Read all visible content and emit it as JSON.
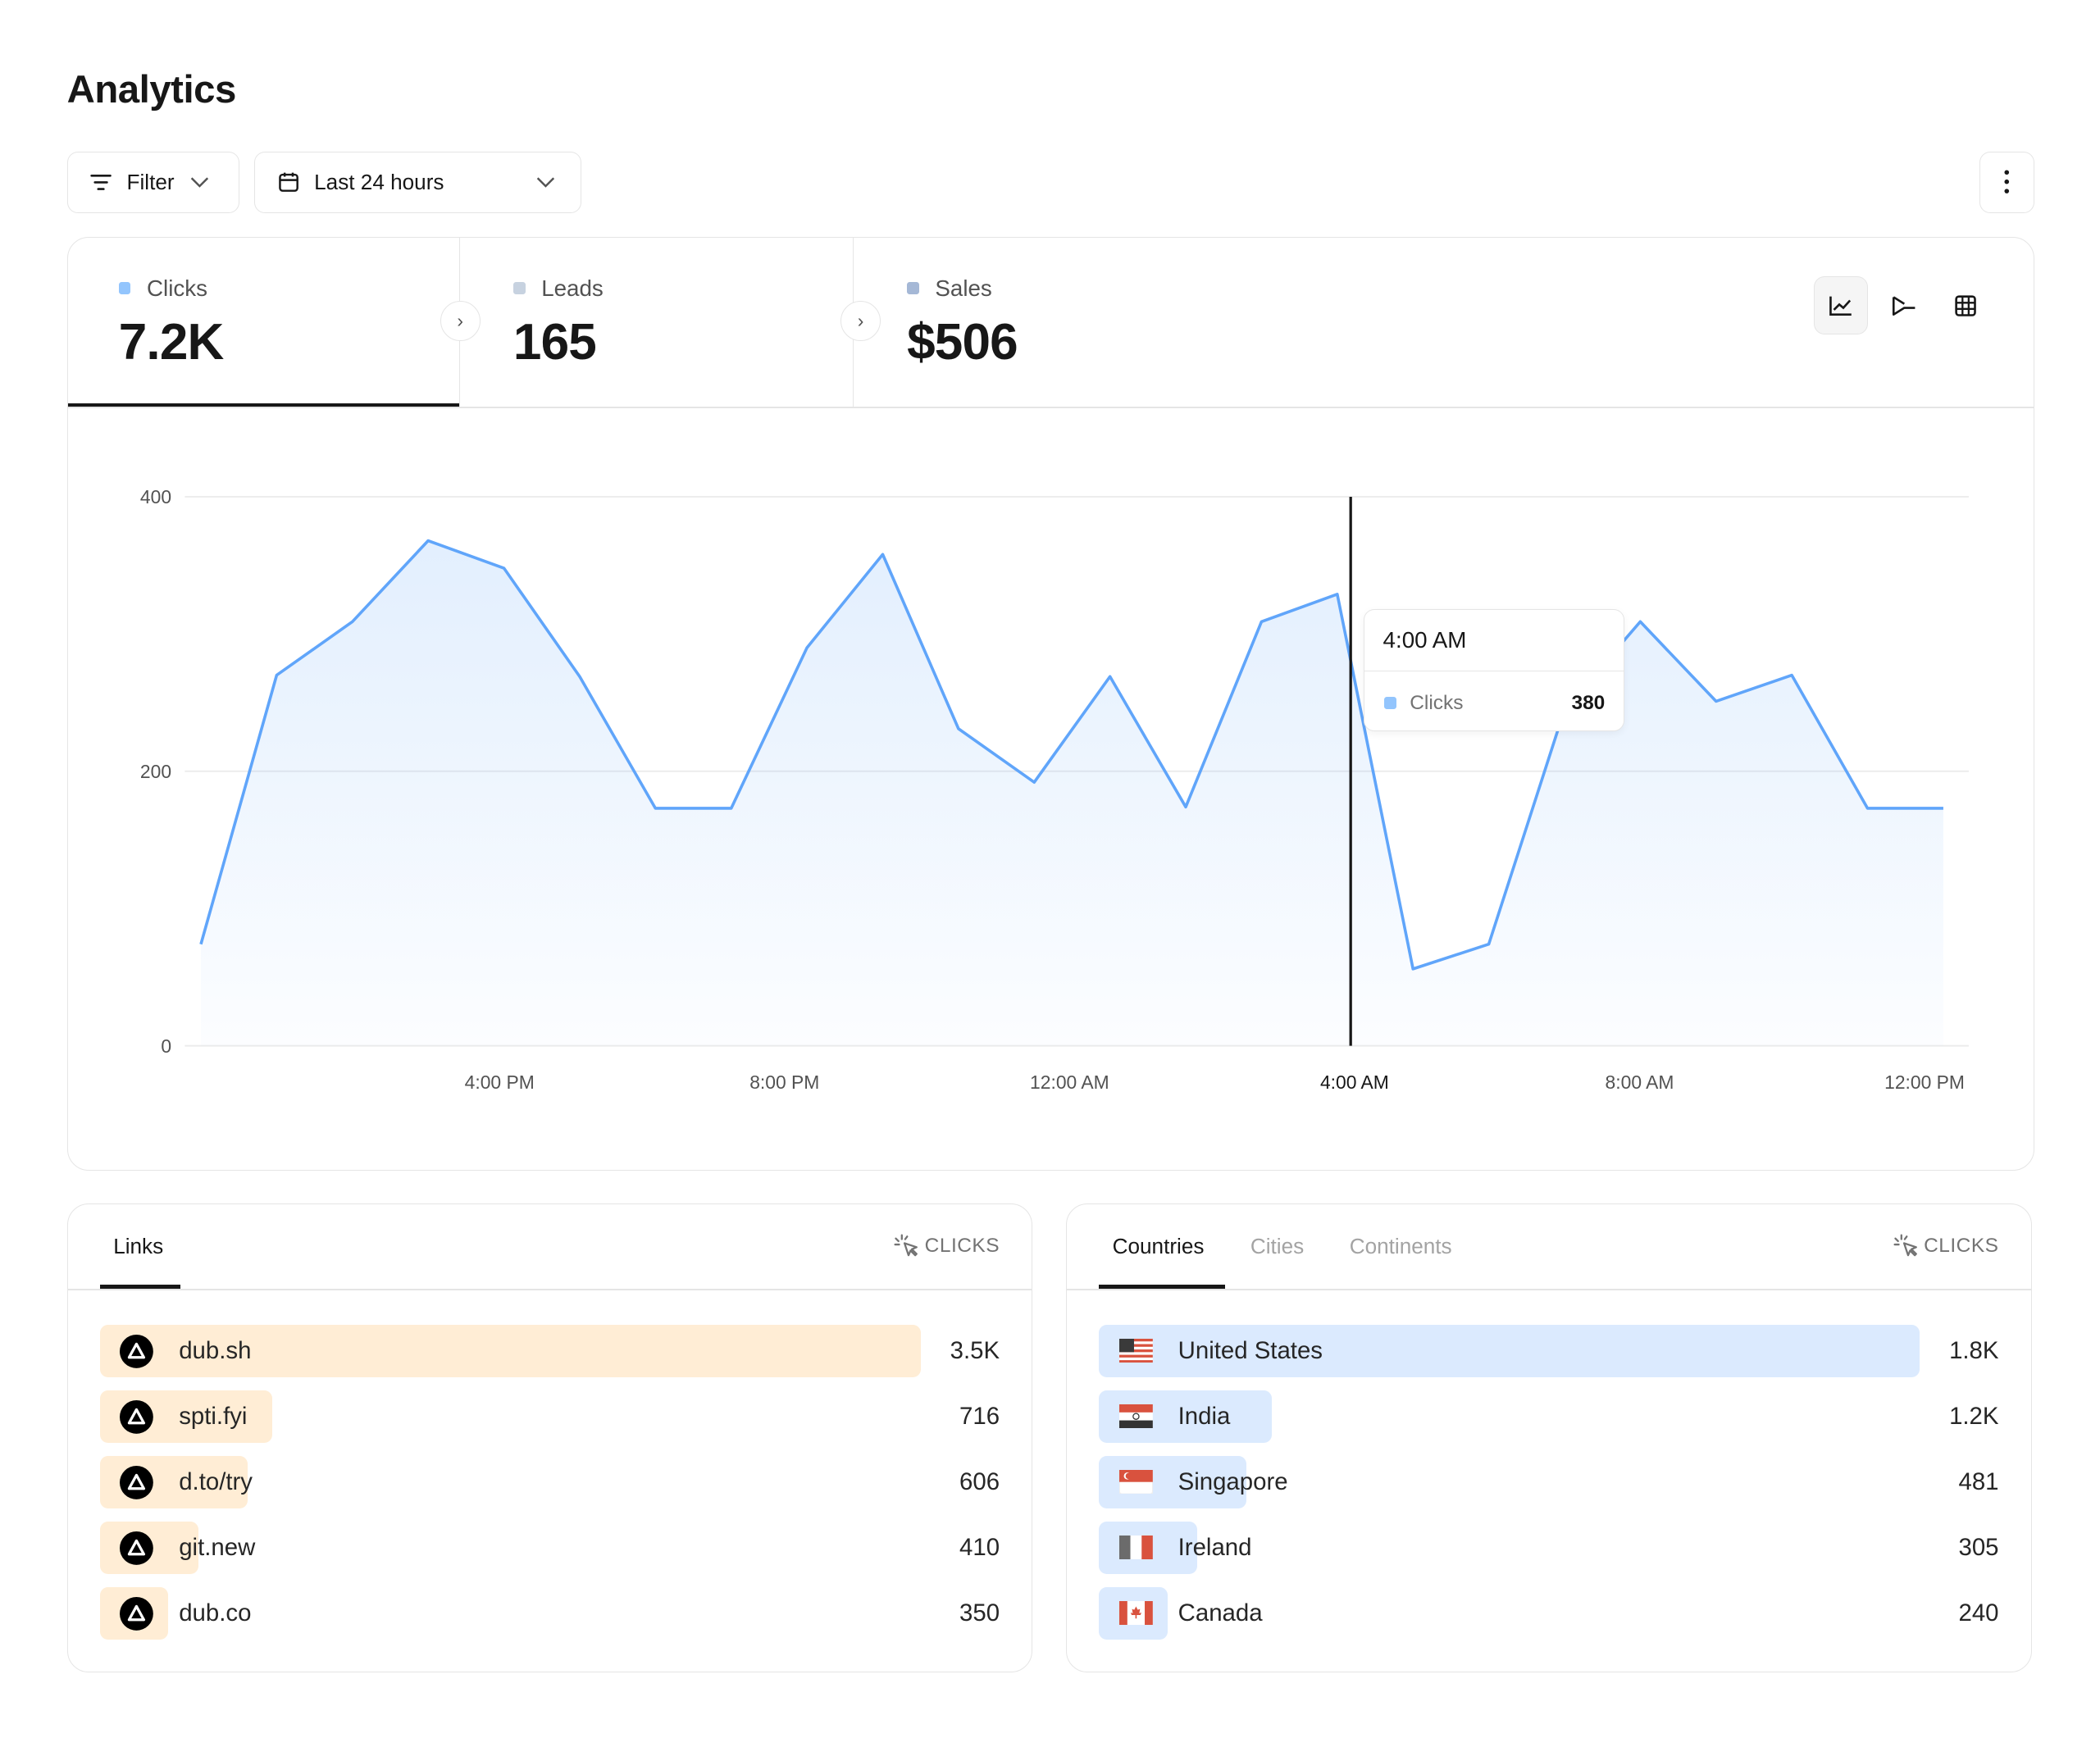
{
  "page": {
    "title": "Analytics"
  },
  "toolbar": {
    "filter_label": "Filter",
    "date_range_label": "Last 24 hours",
    "icons": {
      "filter": "filter-lines-icon",
      "calendar": "calendar-icon",
      "chevron": "chevron-down-icon",
      "more": "vertical-dots-icon"
    }
  },
  "metrics": [
    {
      "label": "Clicks",
      "value": "7.2K",
      "active": true
    },
    {
      "label": "Leads",
      "value": "165",
      "active": false
    },
    {
      "label": "Sales",
      "value": "$506",
      "active": false
    }
  ],
  "view_toggles": [
    {
      "icon": "line-chart-icon",
      "active": true
    },
    {
      "icon": "funnel-icon",
      "active": false
    },
    {
      "icon": "table-grid-icon",
      "active": false
    }
  ],
  "colors": {
    "accent": "#60a5fa",
    "dot": "#93c5fd",
    "links_bar": "#ffedd5",
    "countries_bar": "#dbeafe"
  },
  "chart_data": {
    "type": "area",
    "series": [
      {
        "name": "Clicks",
        "values": [
          74,
          270,
          309,
          368,
          348,
          269,
          173,
          173,
          290,
          358,
          231,
          192,
          269,
          174,
          309,
          329,
          56,
          74,
          245,
          309,
          251,
          270,
          173,
          173
        ]
      }
    ],
    "x_tick_labels": [
      "4:00 PM",
      "8:00 PM",
      "12:00 AM",
      "4:00 AM",
      "8:00 AM",
      "12:00 PM"
    ],
    "y_ticks": [
      0,
      200,
      400
    ],
    "ylim": [
      0,
      400
    ],
    "grid": true,
    "tooltip": {
      "title": "4:00 AM",
      "series": "Clicks",
      "value": "380"
    }
  },
  "links_panel": {
    "tabs": [
      "Links"
    ],
    "metric_label": "CLICKS",
    "rows": [
      {
        "name": "dub.sh",
        "value": "3.5K",
        "fraction": 1.0
      },
      {
        "name": "spti.fyi",
        "value": "716",
        "fraction": 0.21
      },
      {
        "name": "d.to/try",
        "value": "606",
        "fraction": 0.18
      },
      {
        "name": "git.new",
        "value": "410",
        "fraction": 0.12
      },
      {
        "name": "dub.co",
        "value": "350",
        "fraction": 0.083
      }
    ]
  },
  "countries_panel": {
    "tabs": [
      "Countries",
      "Cities",
      "Continents"
    ],
    "metric_label": "CLICKS",
    "rows": [
      {
        "name": "United States",
        "value": "1.8K",
        "fraction": 1.0,
        "flag": "us"
      },
      {
        "name": "India",
        "value": "1.2K",
        "fraction": 0.21,
        "flag": "in"
      },
      {
        "name": "Singapore",
        "value": "481",
        "fraction": 0.18,
        "flag": "sg"
      },
      {
        "name": "Ireland",
        "value": "305",
        "fraction": 0.12,
        "flag": "ie"
      },
      {
        "name": "Canada",
        "value": "240",
        "fraction": 0.083,
        "flag": "ca"
      }
    ]
  }
}
